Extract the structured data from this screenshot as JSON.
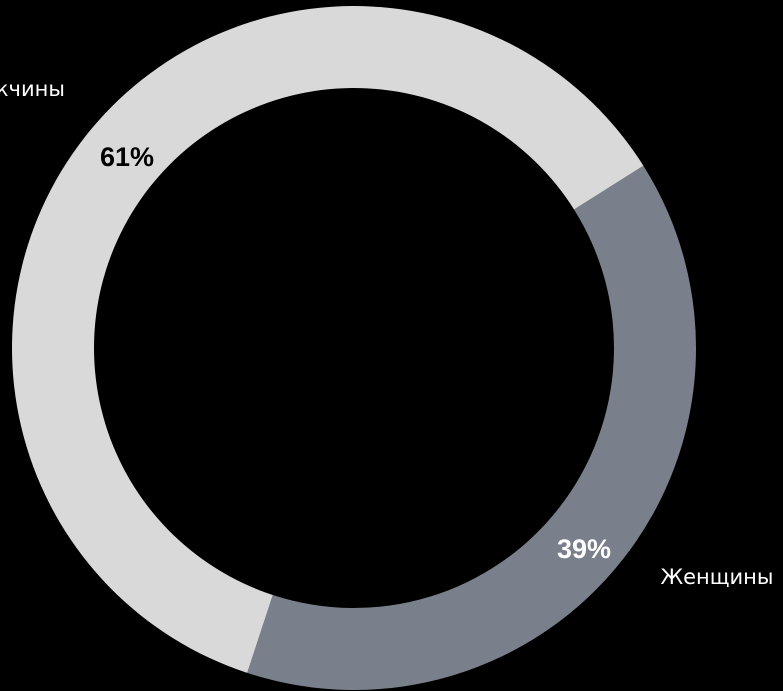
{
  "chart_data": {
    "type": "pie",
    "variant": "donut",
    "slices": [
      {
        "label": "Мужчины",
        "value": 61,
        "value_label": "61%",
        "color": "#d9d9d9",
        "value_label_color": "#000000"
      },
      {
        "label": "Женщины",
        "value": 39,
        "value_label": "39%",
        "color": "#7a808b",
        "value_label_color": "#ffffff"
      }
    ],
    "category_label_color": "#ffffff",
    "background_color": "#000000"
  }
}
